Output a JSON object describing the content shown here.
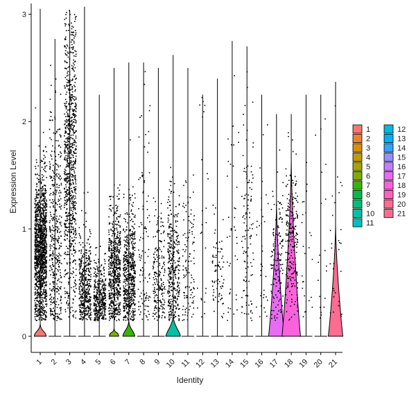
{
  "chart_data": {
    "type": "violin",
    "xlabel": "Identity",
    "ylabel": "Expression Level",
    "ylim": [
      -0.15,
      3.1
    ],
    "y_ticks": [
      0,
      1,
      2,
      3
    ],
    "grid": false,
    "legend_position": "right",
    "legend_columns": 2,
    "categories": [
      "1",
      "2",
      "3",
      "4",
      "5",
      "6",
      "7",
      "8",
      "9",
      "10",
      "11",
      "12",
      "13",
      "14",
      "15",
      "16",
      "17",
      "18",
      "19",
      "20",
      "21"
    ],
    "colors": [
      "#F8766D",
      "#E58700",
      "#C99800",
      "#A3A500",
      "#6BB100",
      "#00BA38",
      "#00BF7D",
      "#00C0AF",
      "#00BCD8",
      "#00B0F6",
      "#619CFF",
      "#B983FF",
      "#E76BF3",
      "#FD61D1",
      "#FF67A4",
      "#E7861B",
      "#BE9C00",
      "#8CAB00",
      "#24B700",
      "#00BE70",
      "#00C1AB"
    ],
    "violin_colors": [
      "#F8766D",
      "#EA8331",
      "#D89000",
      "#C09B00",
      "#A3A500",
      "#7CAE00",
      "#39B600",
      "#00BB4E",
      "#00BF7D",
      "#00C1A3",
      "#00BFC4",
      "#00BAE0",
      "#00B0F6",
      "#35A2FF",
      "#9590FF",
      "#C77CFF",
      "#E76BF3",
      "#FA62DB",
      "#FF62BC",
      "#FF6C91",
      "#FF6C91"
    ],
    "series": [
      {
        "name": "1",
        "max": 3.05,
        "nonzero_points": 1400,
        "nonzero_center": 0.8,
        "nonzero_spread": 0.35,
        "zero_bump_height": 0.07,
        "zero_bump_width": 0.45
      },
      {
        "name": "2",
        "max": 2.77,
        "nonzero_points": 420,
        "nonzero_center": 0.9,
        "nonzero_spread": 0.6,
        "zero_bump_height": 0.0,
        "zero_bump_width": 0.0
      },
      {
        "name": "3",
        "max": 3.04,
        "nonzero_points": 900,
        "nonzero_center": 1.6,
        "nonzero_spread": 0.7,
        "zero_bump_height": 0.0,
        "zero_bump_width": 0.0
      },
      {
        "name": "4",
        "max": 3.07,
        "nonzero_points": 420,
        "nonzero_center": 0.45,
        "nonzero_spread": 0.25,
        "zero_bump_height": 0.0,
        "zero_bump_width": 0.0
      },
      {
        "name": "5",
        "max": 2.25,
        "nonzero_points": 380,
        "nonzero_center": 0.35,
        "nonzero_spread": 0.2,
        "zero_bump_height": 0.0,
        "zero_bump_width": 0.0
      },
      {
        "name": "6",
        "max": 2.5,
        "nonzero_points": 600,
        "nonzero_center": 0.6,
        "nonzero_spread": 0.3,
        "zero_bump_height": 0.03,
        "zero_bump_width": 0.35
      },
      {
        "name": "7",
        "max": 2.55,
        "nonzero_points": 600,
        "nonzero_center": 0.55,
        "nonzero_spread": 0.3,
        "zero_bump_height": 0.1,
        "zero_bump_width": 0.45
      },
      {
        "name": "8",
        "max": 2.55,
        "nonzero_points": 110,
        "nonzero_center": 0.8,
        "nonzero_spread": 0.7,
        "zero_bump_height": 0.0,
        "zero_bump_width": 0.0
      },
      {
        "name": "9",
        "max": 2.5,
        "nonzero_points": 210,
        "nonzero_center": 0.55,
        "nonzero_spread": 0.3,
        "zero_bump_height": 0.0,
        "zero_bump_width": 0.0
      },
      {
        "name": "10",
        "max": 2.62,
        "nonzero_points": 360,
        "nonzero_center": 0.6,
        "nonzero_spread": 0.35,
        "zero_bump_height": 0.15,
        "zero_bump_width": 0.55
      },
      {
        "name": "11",
        "max": 2.5,
        "nonzero_points": 120,
        "nonzero_center": 0.7,
        "nonzero_spread": 0.5,
        "zero_bump_height": 0.0,
        "zero_bump_width": 0.0
      },
      {
        "name": "12",
        "max": 2.25,
        "nonzero_points": 25,
        "nonzero_center": 1.2,
        "nonzero_spread": 0.6,
        "zero_bump_height": 0.0,
        "zero_bump_width": 0.0
      },
      {
        "name": "13",
        "max": 2.4,
        "nonzero_points": 80,
        "nonzero_center": 0.6,
        "nonzero_spread": 0.25,
        "zero_bump_height": 0.0,
        "zero_bump_width": 0.0
      },
      {
        "name": "14",
        "max": 2.75,
        "nonzero_points": 40,
        "nonzero_center": 1.3,
        "nonzero_spread": 0.8,
        "zero_bump_height": 0.0,
        "zero_bump_width": 0.0
      },
      {
        "name": "15",
        "max": 2.7,
        "nonzero_points": 120,
        "nonzero_center": 0.9,
        "nonzero_spread": 0.6,
        "zero_bump_height": 0.0,
        "zero_bump_width": 0.0
      },
      {
        "name": "16",
        "max": 2.25,
        "nonzero_points": 35,
        "nonzero_center": 0.9,
        "nonzero_spread": 0.6,
        "zero_bump_height": 0.0,
        "zero_bump_width": 0.0
      },
      {
        "name": "17",
        "max": 2.07,
        "nonzero_points": 150,
        "nonzero_center": 0.7,
        "nonzero_spread": 0.35,
        "zero_bump_height": 1.2,
        "zero_bump_width": 0.6
      },
      {
        "name": "18",
        "max": 2.07,
        "nonzero_points": 230,
        "nonzero_center": 0.85,
        "nonzero_spread": 0.35,
        "zero_bump_height": 1.6,
        "zero_bump_width": 0.7
      },
      {
        "name": "19",
        "max": 2.25,
        "nonzero_points": 25,
        "nonzero_center": 0.8,
        "nonzero_spread": 0.7,
        "zero_bump_height": 0.0,
        "zero_bump_width": 0.0
      },
      {
        "name": "20",
        "max": 2.25,
        "nonzero_points": 20,
        "nonzero_center": 1.1,
        "nonzero_spread": 0.7,
        "zero_bump_height": 0.0,
        "zero_bump_width": 0.0
      },
      {
        "name": "21",
        "max": 2.37,
        "nonzero_points": 30,
        "nonzero_center": 0.8,
        "nonzero_spread": 0.6,
        "zero_bump_height": 1.0,
        "zero_bump_width": 0.55
      }
    ]
  }
}
